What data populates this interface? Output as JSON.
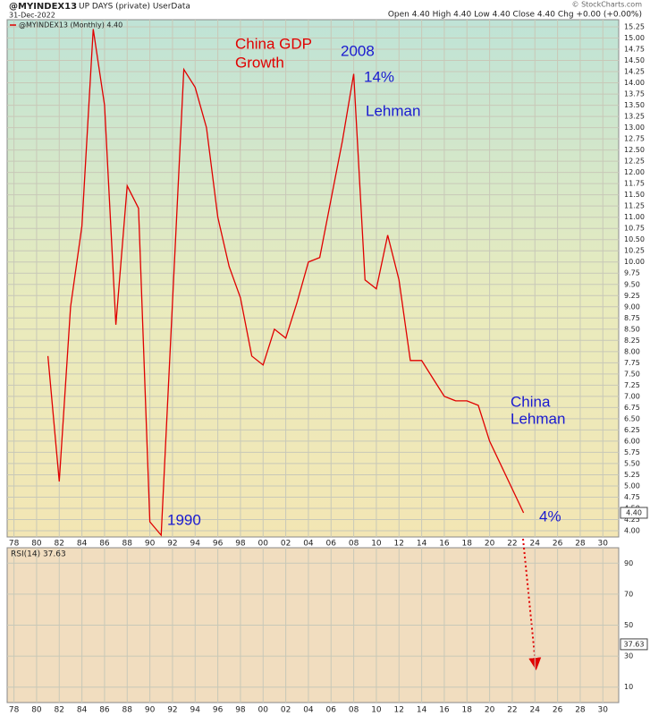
{
  "header": {
    "symbol": "@MYINDEX13",
    "desc": "UP DAYS (private) UserData",
    "date": "31-Dec-2022",
    "quote": "Open 4.40  High 4.40  Low 4.40  Close 4.40  Chg +0.00 (+0.00%)",
    "credit": "© StockCharts.com"
  },
  "chart_data": [
    {
      "type": "line",
      "x": [
        1981,
        1982,
        1983,
        1984,
        1985,
        1986,
        1987,
        1988,
        1989,
        1990,
        1991,
        1993,
        1994,
        1995,
        1996,
        1997,
        1998,
        1999,
        2000,
        2001,
        2002,
        2003,
        2004,
        2005,
        2006,
        2007,
        2008,
        2009,
        2010,
        2011,
        2012,
        2013,
        2014,
        2015,
        2016,
        2017,
        2018,
        2019,
        2020,
        2023
      ],
      "series": [
        {
          "name": "@MYINDEX13 (Monthly) 4.40",
          "color": "#e00000",
          "values": [
            7.9,
            5.1,
            9.0,
            10.8,
            15.2,
            13.5,
            8.6,
            11.7,
            11.2,
            4.2,
            3.9,
            14.3,
            13.9,
            13.0,
            11.0,
            9.9,
            9.2,
            7.9,
            7.7,
            8.5,
            8.3,
            9.1,
            10.0,
            10.1,
            11.4,
            12.7,
            14.2,
            9.6,
            9.4,
            10.6,
            9.6,
            7.8,
            7.8,
            7.4,
            7.0,
            6.9,
            6.9,
            6.8,
            6.0,
            4.4
          ]
        }
      ],
      "last_tag": {
        "value": 4.4,
        "label": "4.40"
      },
      "annotations": [
        "China GDP",
        "Growth",
        "2008",
        "14%",
        "Lehman",
        "China",
        "Lehman",
        "1990",
        "4%"
      ],
      "xlim": [
        1977.4,
        2031.4
      ],
      "xticks": [
        {
          "value": 1978,
          "label": "78"
        },
        {
          "value": 1980,
          "label": "80"
        },
        {
          "value": 1982,
          "label": "82"
        },
        {
          "value": 1984,
          "label": "84"
        },
        {
          "value": 1986,
          "label": "86"
        },
        {
          "value": 1988,
          "label": "88"
        },
        {
          "value": 1990,
          "label": "90"
        },
        {
          "value": 1992,
          "label": "92"
        },
        {
          "value": 1994,
          "label": "94"
        },
        {
          "value": 1996,
          "label": "96"
        },
        {
          "value": 1998,
          "label": "98"
        },
        {
          "value": 2000,
          "label": "00"
        },
        {
          "value": 2002,
          "label": "02"
        },
        {
          "value": 2004,
          "label": "04"
        },
        {
          "value": 2006,
          "label": "06"
        },
        {
          "value": 2008,
          "label": "08"
        },
        {
          "value": 2010,
          "label": "10"
        },
        {
          "value": 2012,
          "label": "12"
        },
        {
          "value": 2014,
          "label": "14"
        },
        {
          "value": 2016,
          "label": "16"
        },
        {
          "value": 2018,
          "label": "18"
        },
        {
          "value": 2020,
          "label": "20"
        },
        {
          "value": 2022,
          "label": "22"
        },
        {
          "value": 2024,
          "label": "24"
        },
        {
          "value": 2026,
          "label": "26"
        },
        {
          "value": 2028,
          "label": "28"
        },
        {
          "value": 2030,
          "label": "30"
        }
      ],
      "ylim": [
        3.86,
        15.41
      ],
      "yticks": [
        {
          "value": 4,
          "label": "4.00"
        },
        {
          "value": 4.25,
          "label": "4.25"
        },
        {
          "value": 4.5,
          "label": "4.50"
        },
        {
          "value": 4.75,
          "label": "4.75"
        },
        {
          "value": 5,
          "label": "5.00"
        },
        {
          "value": 5.25,
          "label": "5.25"
        },
        {
          "value": 5.5,
          "label": "5.50"
        },
        {
          "value": 5.75,
          "label": "5.75"
        },
        {
          "value": 6,
          "label": "6.00"
        },
        {
          "value": 6.25,
          "label": "6.25"
        },
        {
          "value": 6.5,
          "label": "6.50"
        },
        {
          "value": 6.75,
          "label": "6.75"
        },
        {
          "value": 7,
          "label": "7.00"
        },
        {
          "value": 7.25,
          "label": "7.25"
        },
        {
          "value": 7.5,
          "label": "7.50"
        },
        {
          "value": 7.75,
          "label": "7.75"
        },
        {
          "value": 8,
          "label": "8.00"
        },
        {
          "value": 8.25,
          "label": "8.25"
        },
        {
          "value": 8.5,
          "label": "8.50"
        },
        {
          "value": 8.75,
          "label": "8.75"
        },
        {
          "value": 9,
          "label": "9.00"
        },
        {
          "value": 9.25,
          "label": "9.25"
        },
        {
          "value": 9.5,
          "label": "9.50"
        },
        {
          "value": 9.75,
          "label": "9.75"
        },
        {
          "value": 10,
          "label": "10.00"
        },
        {
          "value": 10.25,
          "label": "10.25"
        },
        {
          "value": 10.5,
          "label": "10.50"
        },
        {
          "value": 10.75,
          "label": "10.75"
        },
        {
          "value": 11,
          "label": "11.00"
        },
        {
          "value": 11.25,
          "label": "11.25"
        },
        {
          "value": 11.5,
          "label": "11.50"
        },
        {
          "value": 11.75,
          "label": "11.75"
        },
        {
          "value": 12,
          "label": "12.00"
        },
        {
          "value": 12.25,
          "label": "12.25"
        },
        {
          "value": 12.5,
          "label": "12.50"
        },
        {
          "value": 12.75,
          "label": "12.75"
        },
        {
          "value": 13,
          "label": "13.00"
        },
        {
          "value": 13.25,
          "label": "13.25"
        },
        {
          "value": 13.5,
          "label": "13.50"
        },
        {
          "value": 13.75,
          "label": "13.75"
        },
        {
          "value": 14,
          "label": "14.00"
        },
        {
          "value": 14.25,
          "label": "14.25"
        },
        {
          "value": 14.5,
          "label": "14.50"
        },
        {
          "value": 14.75,
          "label": "14.75"
        },
        {
          "value": 15,
          "label": "15.00"
        },
        {
          "value": 15.25,
          "label": "15.25"
        }
      ],
      "grid": true
    },
    {
      "type": "line",
      "title": "RSI(14) 37.63",
      "last_tag": {
        "value": 37.63,
        "label": "37.63"
      },
      "xlim": [
        1977.4,
        2031.4
      ],
      "xticks": [
        {
          "value": 1978,
          "label": "78"
        },
        {
          "value": 1980,
          "label": "80"
        },
        {
          "value": 1982,
          "label": "82"
        },
        {
          "value": 1984,
          "label": "84"
        },
        {
          "value": 1986,
          "label": "86"
        },
        {
          "value": 1988,
          "label": "88"
        },
        {
          "value": 1990,
          "label": "90"
        },
        {
          "value": 1992,
          "label": "92"
        },
        {
          "value": 1994,
          "label": "94"
        },
        {
          "value": 1996,
          "label": "96"
        },
        {
          "value": 1998,
          "label": "98"
        },
        {
          "value": 2000,
          "label": "00"
        },
        {
          "value": 2002,
          "label": "02"
        },
        {
          "value": 2004,
          "label": "04"
        },
        {
          "value": 2006,
          "label": "06"
        },
        {
          "value": 2008,
          "label": "08"
        },
        {
          "value": 2010,
          "label": "10"
        },
        {
          "value": 2012,
          "label": "12"
        },
        {
          "value": 2014,
          "label": "14"
        },
        {
          "value": 2016,
          "label": "16"
        },
        {
          "value": 2018,
          "label": "18"
        },
        {
          "value": 2020,
          "label": "20"
        },
        {
          "value": 2022,
          "label": "22"
        },
        {
          "value": 2024,
          "label": "24"
        },
        {
          "value": 2026,
          "label": "26"
        },
        {
          "value": 2028,
          "label": "28"
        },
        {
          "value": 2030,
          "label": "30"
        }
      ],
      "ylim": [
        0,
        100
      ],
      "yticks": [
        10,
        30,
        50,
        70,
        90
      ],
      "grid": true
    }
  ]
}
